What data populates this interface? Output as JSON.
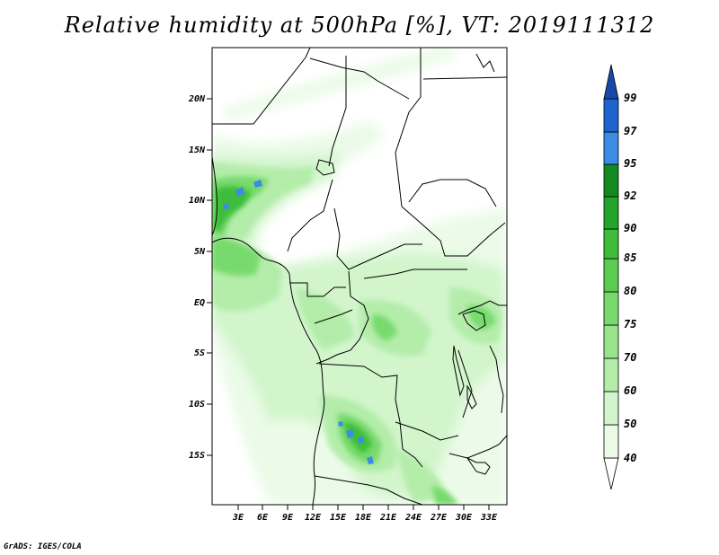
{
  "title": "Relative humidity at 500hPa [%], VT: 2019111312",
  "credit": "GrADS: IGES/COLA",
  "map": {
    "lat_ticks": [
      "20N",
      "15N",
      "10N",
      "5N",
      "EQ",
      "5S",
      "10S",
      "15S"
    ],
    "lon_ticks": [
      "3E",
      "6E",
      "9E",
      "12E",
      "15E",
      "18E",
      "21E",
      "24E",
      "27E",
      "30E",
      "33E"
    ]
  },
  "colorbar": {
    "levels": [
      "40",
      "50",
      "60",
      "70",
      "75",
      "80",
      "85",
      "90",
      "92",
      "95",
      "97",
      "99"
    ],
    "colors": [
      "#ffffff",
      "#ebfbe8",
      "#d2f5cc",
      "#b4edaa",
      "#97e48b",
      "#78da6d",
      "#5acd51",
      "#3dbd3a",
      "#22a52a",
      "#138a1f",
      "#3c8ce6",
      "#1f64cc",
      "#154aa8"
    ]
  }
}
